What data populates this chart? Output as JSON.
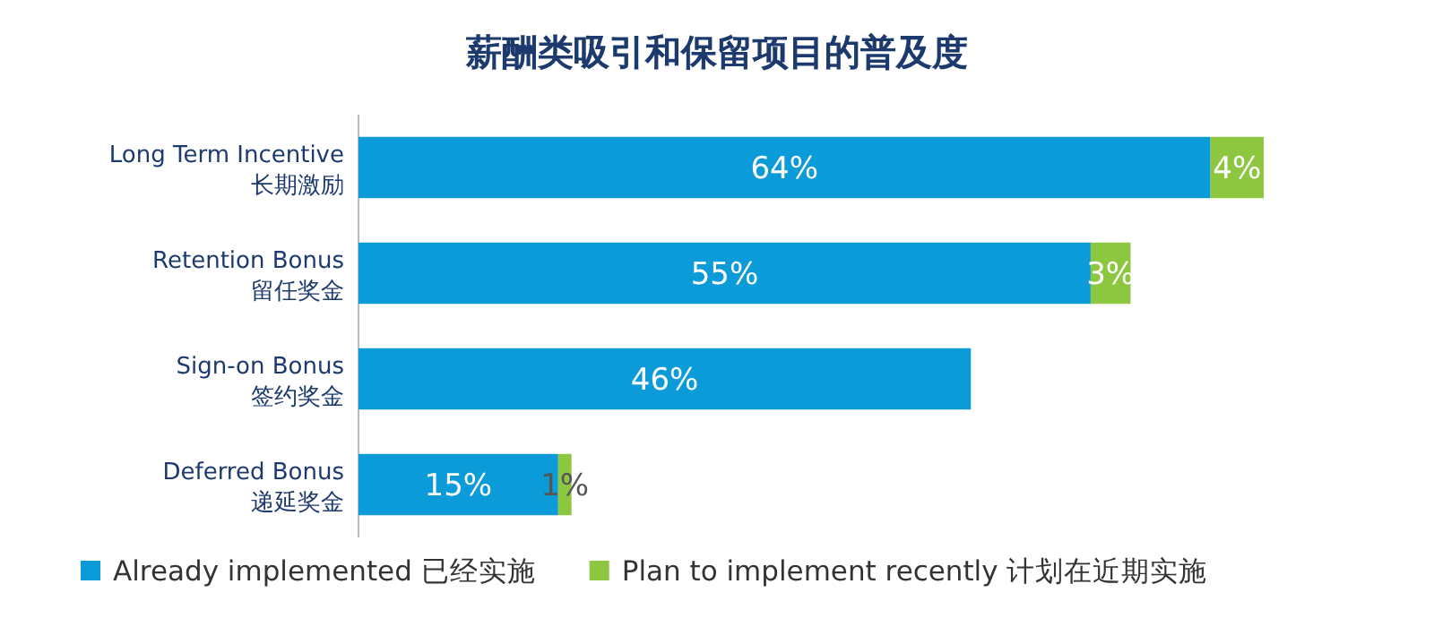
{
  "chart_data": {
    "type": "bar",
    "orientation": "horizontal",
    "stacked": true,
    "title": "薪酬类吸引和保留项目的普及度",
    "categories": [
      "Long Term Incentive\n长期激励",
      "Retention Bonus\n留任奖金",
      "Sign-on Bonus\n签约奖金",
      "Deferred Bonus\n递延奖金"
    ],
    "series": [
      {
        "name": "Already implemented 已经实施",
        "color": "#0b9bd8",
        "values": [
          64,
          55,
          46,
          15
        ],
        "value_labels": [
          "64%",
          "55%",
          "46%",
          "15%"
        ]
      },
      {
        "name": "Plan to implement recently 计划在近期实施",
        "color": "#8dc63f",
        "values": [
          4,
          3,
          null,
          1
        ],
        "value_labels": [
          "4%",
          "3%",
          null,
          "1%"
        ]
      }
    ],
    "legend": "bottom left"
  }
}
